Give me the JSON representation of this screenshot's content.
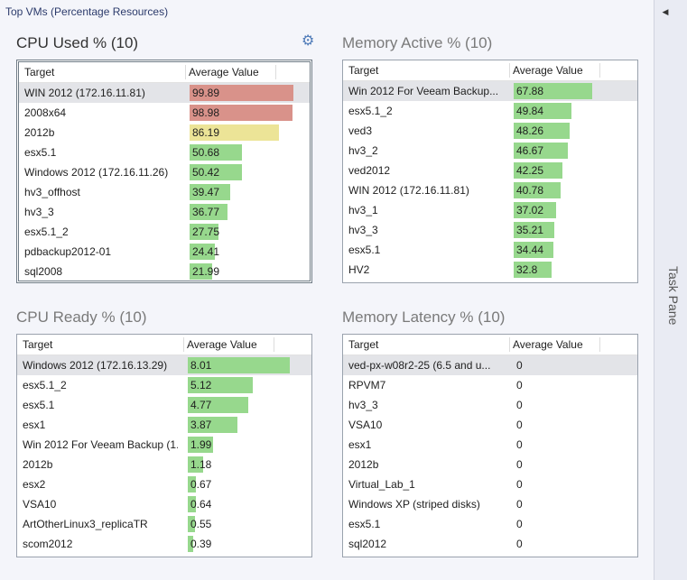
{
  "page": {
    "title": "Top VMs (Percentage Resources)"
  },
  "task_pane": {
    "label": "Task Pane",
    "collapse_glyph": "◀"
  },
  "colors": {
    "high": "#d9928a",
    "medium": "#ece497",
    "normal": "#97d88d"
  },
  "panels": {
    "cpu_used": {
      "title": "CPU Used % (10)",
      "col_target": "Target",
      "col_value": "Average Value",
      "rows": [
        {
          "target": "WIN 2012 (172.16.11.81)",
          "value": "99.89",
          "color": "high"
        },
        {
          "target": "2008x64",
          "value": "98.98",
          "color": "high"
        },
        {
          "target": "2012b",
          "value": "86.19",
          "color": "medium"
        },
        {
          "target": "esx5.1",
          "value": "50.68",
          "color": "normal"
        },
        {
          "target": "Windows 2012 (172.16.11.26)",
          "value": "50.42",
          "color": "normal"
        },
        {
          "target": "hv3_offhost",
          "value": "39.47",
          "color": "normal"
        },
        {
          "target": "hv3_3",
          "value": "36.77",
          "color": "normal"
        },
        {
          "target": "esx5.1_2",
          "value": "27.75",
          "color": "normal"
        },
        {
          "target": "pdbackup2012-01",
          "value": "24.41",
          "color": "normal"
        },
        {
          "target": "sql2008",
          "value": "21.99",
          "color": "normal"
        }
      ]
    },
    "memory_active": {
      "title": "Memory Active % (10)",
      "col_target": "Target",
      "col_value": "Average Value",
      "rows": [
        {
          "target": "Win 2012 For Veeam Backup...",
          "value": "67.88",
          "color": "normal"
        },
        {
          "target": "esx5.1_2",
          "value": "49.84",
          "color": "normal"
        },
        {
          "target": "ved3",
          "value": "48.26",
          "color": "normal"
        },
        {
          "target": "hv3_2",
          "value": "46.67",
          "color": "normal"
        },
        {
          "target": "ved2012",
          "value": "42.25",
          "color": "normal"
        },
        {
          "target": "WIN 2012 (172.16.11.81)",
          "value": "40.78",
          "color": "normal"
        },
        {
          "target": "hv3_1",
          "value": "37.02",
          "color": "normal"
        },
        {
          "target": "hv3_3",
          "value": "35.21",
          "color": "normal"
        },
        {
          "target": "esx5.1",
          "value": "34.44",
          "color": "normal"
        },
        {
          "target": "HV2",
          "value": "32.8",
          "color": "normal"
        }
      ]
    },
    "cpu_ready": {
      "title": "CPU Ready % (10)",
      "col_target": "Target",
      "col_value": "Average Value",
      "rows": [
        {
          "target": "Windows 2012 (172.16.13.29)",
          "value": "8.01",
          "color": "normal"
        },
        {
          "target": "esx5.1_2",
          "value": "5.12",
          "color": "normal"
        },
        {
          "target": "esx5.1",
          "value": "4.77",
          "color": "normal"
        },
        {
          "target": "esx1",
          "value": "3.87",
          "color": "normal"
        },
        {
          "target": "Win 2012 For Veeam Backup (1...",
          "value": "1.99",
          "color": "normal"
        },
        {
          "target": "2012b",
          "value": "1.18",
          "color": "normal"
        },
        {
          "target": "esx2",
          "value": "0.67",
          "color": "normal"
        },
        {
          "target": "VSA10",
          "value": "0.64",
          "color": "normal"
        },
        {
          "target": "ArtOtherLinux3_replicaTR",
          "value": "0.55",
          "color": "normal"
        },
        {
          "target": "scom2012",
          "value": "0.39",
          "color": "normal"
        }
      ]
    },
    "memory_latency": {
      "title": "Memory Latency % (10)",
      "col_target": "Target",
      "col_value": "Average Value",
      "rows": [
        {
          "target": "ved-px-w08r2-25 (6.5 and u...",
          "value": "0",
          "color": "normal"
        },
        {
          "target": "RPVM7",
          "value": "0",
          "color": "normal"
        },
        {
          "target": "hv3_3",
          "value": "0",
          "color": "normal"
        },
        {
          "target": "VSA10",
          "value": "0",
          "color": "normal"
        },
        {
          "target": "esx1",
          "value": "0",
          "color": "normal"
        },
        {
          "target": "2012b",
          "value": "0",
          "color": "normal"
        },
        {
          "target": "Virtual_Lab_1",
          "value": "0",
          "color": "normal"
        },
        {
          "target": "Windows XP (striped disks)",
          "value": "0",
          "color": "normal"
        },
        {
          "target": "esx5.1",
          "value": "0",
          "color": "normal"
        },
        {
          "target": "sql2012",
          "value": "0",
          "color": "normal"
        }
      ]
    }
  }
}
